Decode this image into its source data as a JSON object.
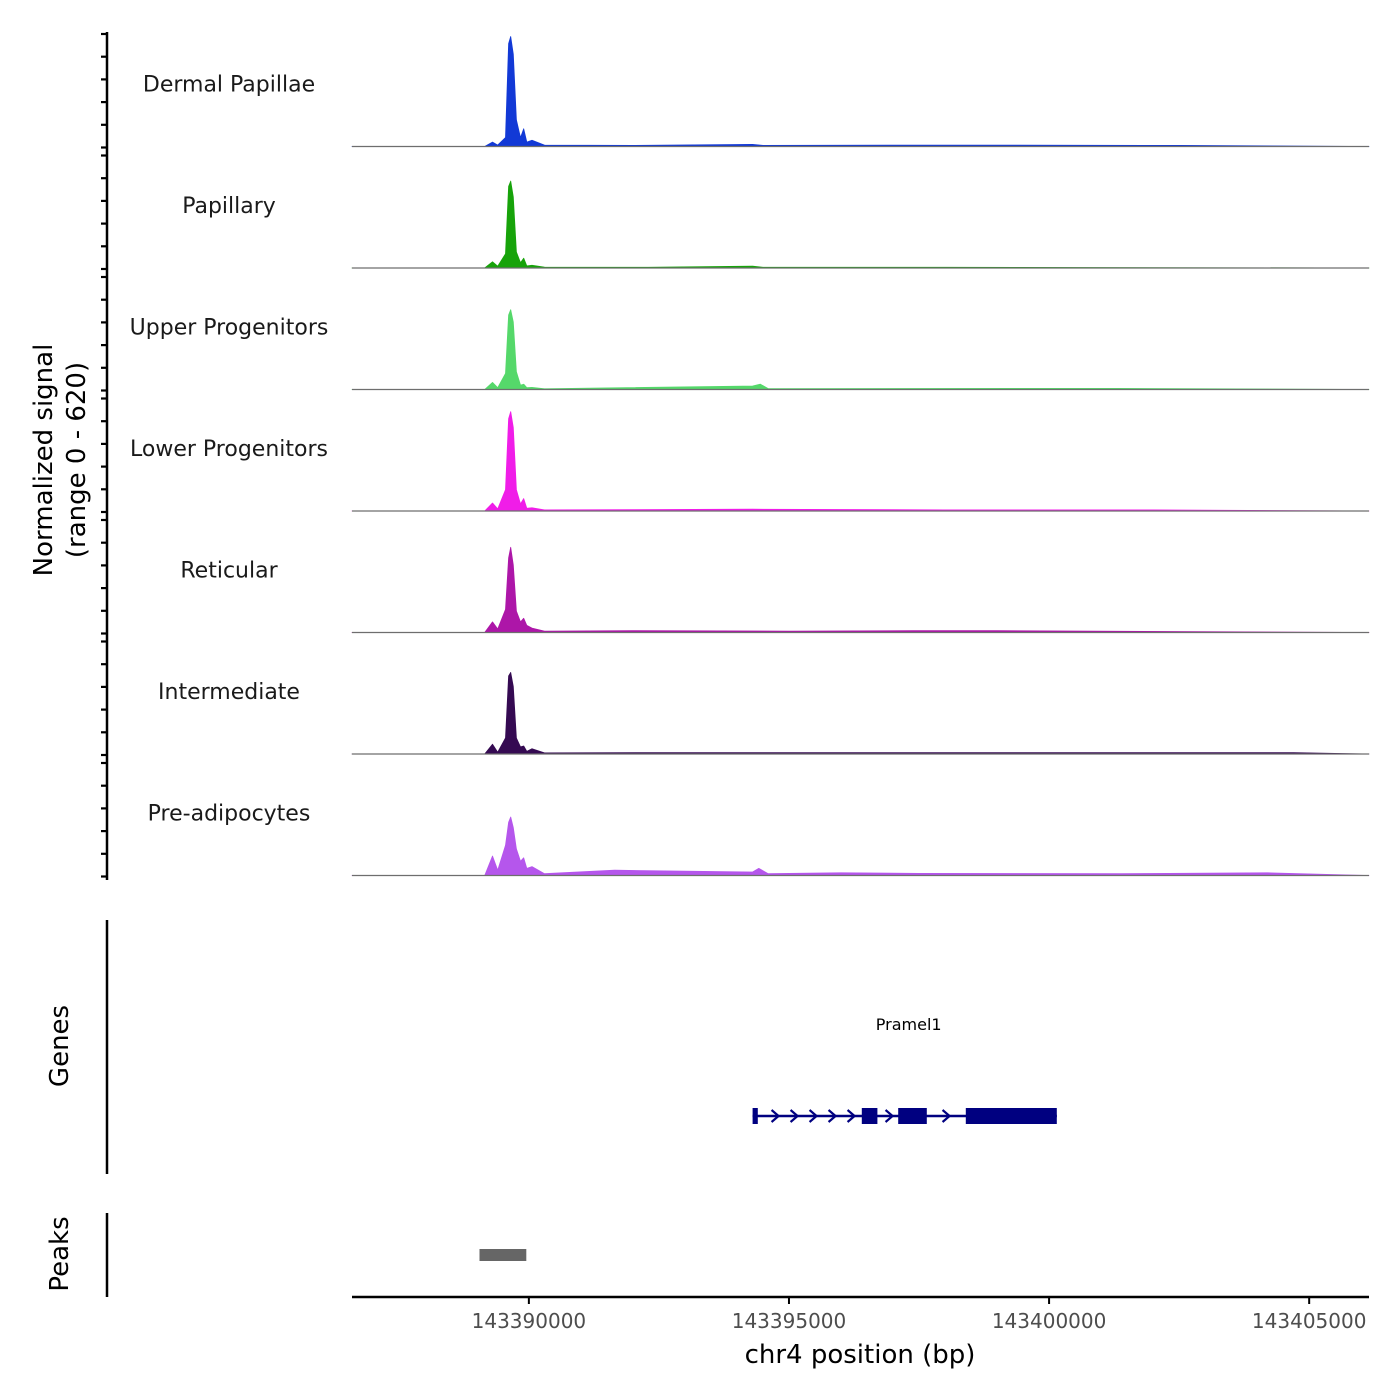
{
  "chart_data": {
    "type": "area",
    "chromosome": "chr4",
    "x_axis": {
      "label": "chr4 position (bp)",
      "range": [
        143386600,
        143406150
      ],
      "ticks": [
        143390000,
        143395000,
        143400000,
        143405000
      ],
      "tick_labels": [
        "143390000",
        "143395000",
        "143400000",
        "143405000"
      ]
    },
    "coverage_axis": {
      "label": "Normalized signal",
      "range_label": "(range 0 - 620)",
      "range": [
        0,
        620
      ]
    },
    "tracks": [
      {
        "name": "Dermal Papillae",
        "color": "#1239d6",
        "profile": [
          [
            143389150,
            0
          ],
          [
            143389300,
            25
          ],
          [
            143389400,
            8
          ],
          [
            143389550,
            50
          ],
          [
            143389610,
            580
          ],
          [
            143389650,
            620
          ],
          [
            143389700,
            520
          ],
          [
            143389760,
            150
          ],
          [
            143389840,
            50
          ],
          [
            143389900,
            100
          ],
          [
            143389960,
            25
          ],
          [
            143390060,
            35
          ],
          [
            143390300,
            8
          ],
          [
            143392000,
            6
          ],
          [
            143394300,
            12
          ],
          [
            143394500,
            6
          ],
          [
            143398000,
            8
          ],
          [
            143402500,
            6
          ]
        ]
      },
      {
        "name": "Papillary",
        "color": "#17a30a",
        "profile": [
          [
            143389150,
            0
          ],
          [
            143389300,
            35
          ],
          [
            143389400,
            10
          ],
          [
            143389550,
            80
          ],
          [
            143389610,
            460
          ],
          [
            143389650,
            490
          ],
          [
            143389700,
            400
          ],
          [
            143389760,
            90
          ],
          [
            143389840,
            30
          ],
          [
            143389900,
            55
          ],
          [
            143389960,
            12
          ],
          [
            143390060,
            15
          ],
          [
            143390300,
            5
          ],
          [
            143392300,
            4
          ],
          [
            143394300,
            10
          ],
          [
            143394500,
            4
          ],
          [
            143398000,
            4
          ]
        ]
      },
      {
        "name": "Upper Progenitors",
        "color": "#55d86a",
        "profile": [
          [
            143389150,
            0
          ],
          [
            143389300,
            40
          ],
          [
            143389400,
            10
          ],
          [
            143389550,
            90
          ],
          [
            143389610,
            420
          ],
          [
            143389650,
            450
          ],
          [
            143389700,
            380
          ],
          [
            143389760,
            100
          ],
          [
            143389840,
            25
          ],
          [
            143389900,
            30
          ],
          [
            143389960,
            10
          ],
          [
            143390060,
            12
          ],
          [
            143390300,
            4
          ],
          [
            143394300,
            20
          ],
          [
            143394450,
            30
          ],
          [
            143394600,
            5
          ],
          [
            143401300,
            6
          ]
        ]
      },
      {
        "name": "Lower Progenitors",
        "color": "#f01de8",
        "profile": [
          [
            143389150,
            0
          ],
          [
            143389300,
            45
          ],
          [
            143389400,
            12
          ],
          [
            143389550,
            120
          ],
          [
            143389610,
            520
          ],
          [
            143389650,
            560
          ],
          [
            143389700,
            470
          ],
          [
            143389760,
            120
          ],
          [
            143389840,
            40
          ],
          [
            143389900,
            70
          ],
          [
            143389960,
            15
          ],
          [
            143390060,
            18
          ],
          [
            143390300,
            6
          ],
          [
            143392000,
            8
          ],
          [
            143394300,
            10
          ],
          [
            143398000,
            6
          ],
          [
            143402000,
            6
          ]
        ]
      },
      {
        "name": "Reticular",
        "color": "#ad16a8",
        "profile": [
          [
            143389150,
            0
          ],
          [
            143389300,
            60
          ],
          [
            143389400,
            20
          ],
          [
            143389550,
            130
          ],
          [
            143389610,
            420
          ],
          [
            143389650,
            480
          ],
          [
            143389700,
            380
          ],
          [
            143389760,
            120
          ],
          [
            143389840,
            60
          ],
          [
            143389900,
            80
          ],
          [
            143389960,
            40
          ],
          [
            143390060,
            25
          ],
          [
            143390300,
            8
          ],
          [
            143392000,
            10
          ],
          [
            143395000,
            8
          ],
          [
            143397400,
            10
          ],
          [
            143399000,
            10
          ]
        ]
      },
      {
        "name": "Intermediate",
        "color": "#350a52",
        "profile": [
          [
            143389150,
            0
          ],
          [
            143389300,
            55
          ],
          [
            143389400,
            10
          ],
          [
            143389550,
            90
          ],
          [
            143389610,
            440
          ],
          [
            143389650,
            460
          ],
          [
            143389700,
            380
          ],
          [
            143389760,
            90
          ],
          [
            143389840,
            40
          ],
          [
            143389900,
            45
          ],
          [
            143389960,
            15
          ],
          [
            143390060,
            30
          ],
          [
            143390300,
            6
          ],
          [
            143393000,
            8
          ],
          [
            143395300,
            8
          ],
          [
            143398000,
            8
          ],
          [
            143404700,
            8
          ]
        ]
      },
      {
        "name": "Pre-adipocytes",
        "color": "#b556ec",
        "profile": [
          [
            143389150,
            0
          ],
          [
            143389300,
            110
          ],
          [
            143389400,
            30
          ],
          [
            143389550,
            170
          ],
          [
            143389610,
            300
          ],
          [
            143389650,
            330
          ],
          [
            143389700,
            270
          ],
          [
            143389760,
            150
          ],
          [
            143389840,
            80
          ],
          [
            143389900,
            100
          ],
          [
            143389960,
            40
          ],
          [
            143390060,
            50
          ],
          [
            143390300,
            10
          ],
          [
            143391650,
            30
          ],
          [
            143394300,
            20
          ],
          [
            143394420,
            40
          ],
          [
            143394600,
            10
          ],
          [
            143396000,
            15
          ],
          [
            143397500,
            12
          ],
          [
            143401400,
            10
          ],
          [
            143402300,
            12
          ],
          [
            143404200,
            15
          ]
        ]
      }
    ],
    "genes": [
      {
        "name": "Pramel1",
        "strand": "+",
        "start": 143394300,
        "end": 143400150,
        "exons": [
          [
            143394300,
            143394400
          ],
          [
            143396400,
            143396700
          ],
          [
            143397100,
            143397650
          ],
          [
            143398400,
            143400150
          ]
        ]
      }
    ],
    "genes_label": "Genes",
    "peaks_label": "Peaks",
    "peaks": [
      {
        "start": 143389050,
        "end": 143389950
      }
    ]
  }
}
